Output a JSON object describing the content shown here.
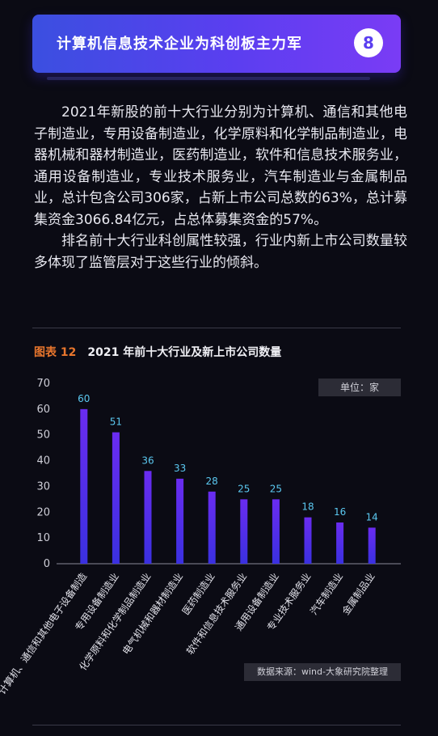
{
  "header": {
    "title": "计算机信息技术企业为科创板主力军",
    "badge": "8"
  },
  "paragraphs": [
    "2021年新股的前十大行业分别为计算机、通信和其他电子制造业，专用设备制造业，化学原料和化学制品制造业，电器机械和器材制造业，医药制造业，软件和信息技术服务业，通用设备制造业，专业技术服务业，汽车制造业与金属制品业，总计包含公司306家，占新上市公司总数的63%，总计募集资金3066.84亿元，占总体募集资金的57%。",
    "排名前十大行业科创属性较强，行业内新上市公司数量较多体现了监管层对于这些行业的倾斜。"
  ],
  "figure": {
    "number": "图表 12",
    "title": "2021 年前十大行业及新上市公司数量",
    "unit": "单位：家",
    "source": "数据来源：wind-大象研究院整理"
  },
  "colors": {
    "accent": "#e8762d",
    "bar_top": "#6a2cf0",
    "bar_bottom": "#3a30e0",
    "label": "#5bc8f0"
  },
  "chart_data": {
    "type": "bar",
    "categories": [
      "计算机、通信和其他电子设备制造",
      "专用设备制造业",
      "化学原料和化学制品制造业",
      "电气机械和器材制造业",
      "医药制造业",
      "软件和信息技术服务业",
      "通用设备制造业",
      "专业技术服务业",
      "汽车制造业",
      "金属制品业"
    ],
    "values": [
      60,
      51,
      36,
      33,
      28,
      25,
      25,
      18,
      16,
      14
    ],
    "yticks": [
      0,
      10,
      20,
      30,
      40,
      50,
      60,
      70
    ],
    "ylim": [
      0,
      70
    ],
    "grid": false,
    "legend": "none"
  }
}
